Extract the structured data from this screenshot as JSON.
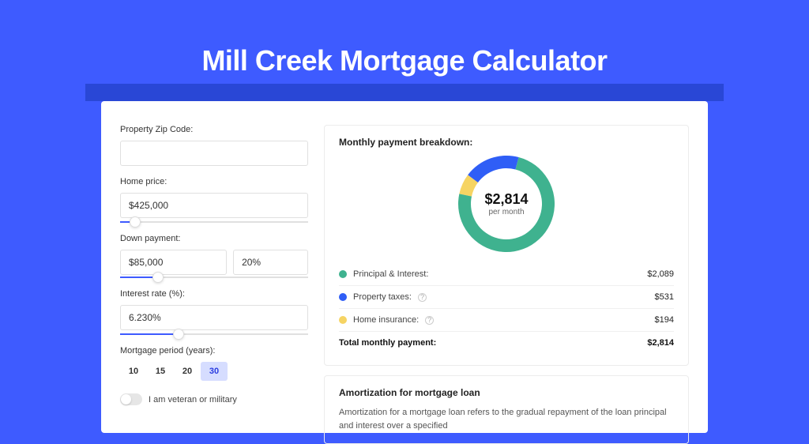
{
  "page": {
    "title": "Mill Creek Mortgage Calculator",
    "background": "#3e5bff"
  },
  "form": {
    "zip": {
      "label": "Property Zip Code:",
      "value": ""
    },
    "price": {
      "label": "Home price:",
      "value": "$425,000",
      "slider_pct": 8
    },
    "down": {
      "label": "Down payment:",
      "amount": "$85,000",
      "pct": "20%",
      "slider_pct": 20
    },
    "rate": {
      "label": "Interest rate (%):",
      "value": "6.230%",
      "slider_pct": 31
    },
    "period": {
      "label": "Mortgage period (years):",
      "options": [
        "10",
        "15",
        "20",
        "30"
      ],
      "selected_index": 3
    },
    "veteran": {
      "label": "I am veteran or military",
      "on": false
    }
  },
  "breakdown": {
    "title": "Monthly payment breakdown:",
    "center_amount": "$2,814",
    "center_sub": "per month",
    "chart": {
      "type": "donut",
      "donut_thickness": 16,
      "background": "#ffffff",
      "slices": [
        {
          "label": "Principal & Interest",
          "value": 2089,
          "pct": 74.23,
          "color": "#3fb28f"
        },
        {
          "label": "Property taxes",
          "value": 531,
          "pct": 18.87,
          "color": "#2f5ef6"
        },
        {
          "label": "Home insurance",
          "value": 194,
          "pct": 6.9,
          "color": "#f6d463"
        }
      ]
    },
    "rows": [
      {
        "label": "Principal & Interest:",
        "amount": "$2,089",
        "color": "#3fb28f",
        "info": false
      },
      {
        "label": "Property taxes:",
        "amount": "$531",
        "color": "#2f5ef6",
        "info": true
      },
      {
        "label": "Home insurance:",
        "amount": "$194",
        "color": "#f6d463",
        "info": true
      }
    ],
    "total": {
      "label": "Total monthly payment:",
      "amount": "$2,814"
    }
  },
  "amortization": {
    "title": "Amortization for mortgage loan",
    "text": "Amortization for a mortgage loan refers to the gradual repayment of the loan principal and interest over a specified"
  }
}
